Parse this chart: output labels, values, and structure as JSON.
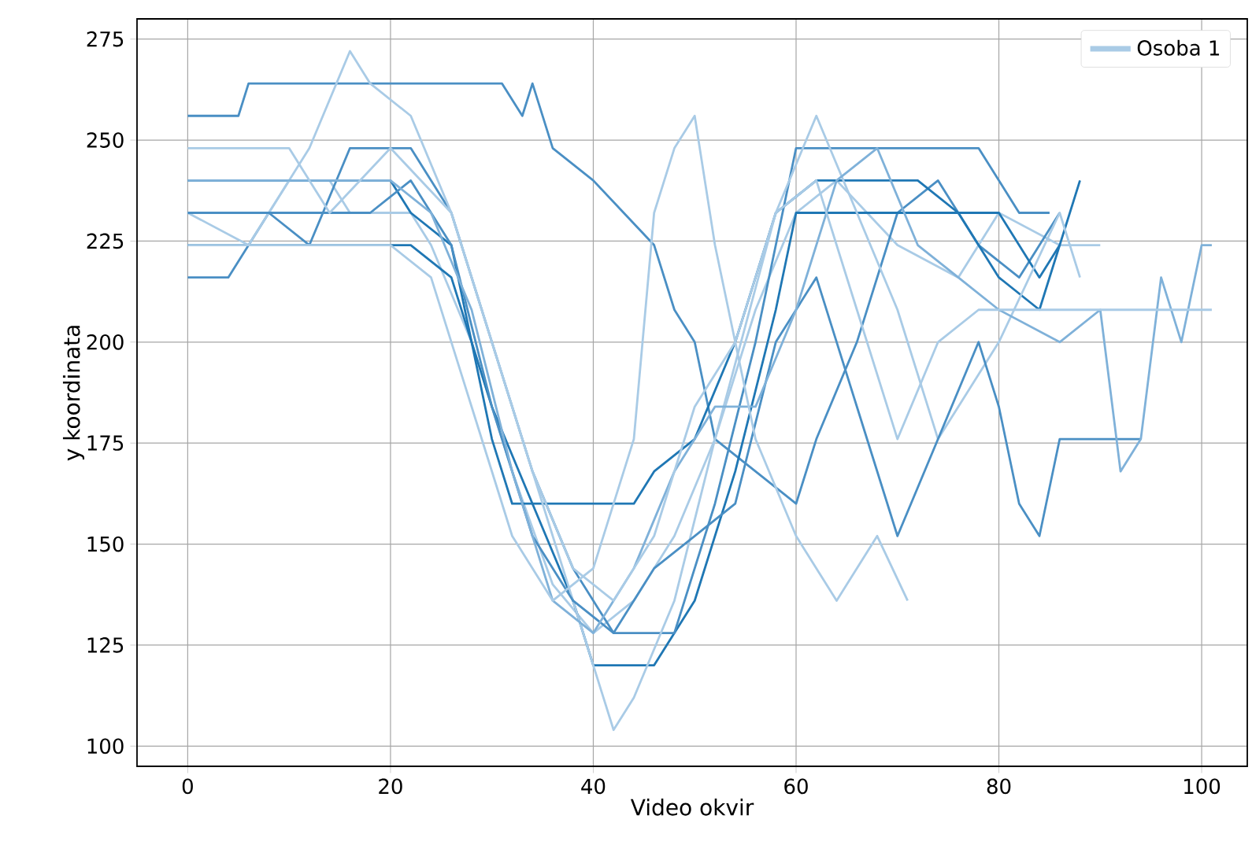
{
  "chart_data": {
    "type": "line",
    "xlabel": "Video okvir",
    "ylabel": "y koordinata",
    "xlim": [
      -5,
      104.5
    ],
    "ylim": [
      95,
      280
    ],
    "xticks": [
      0,
      20,
      40,
      60,
      80,
      100
    ],
    "yticks": [
      100,
      125,
      150,
      175,
      200,
      225,
      250,
      275
    ],
    "grid": true,
    "legend": "top right",
    "series": [
      {
        "name": "Osoba 1",
        "color": "#a9cbe6",
        "x": [
          0,
          8,
          10,
          14,
          16,
          22,
          24,
          28,
          32,
          36,
          40,
          44,
          48,
          52,
          56,
          60,
          64,
          70,
          76,
          80,
          86,
          90
        ],
        "values": [
          232,
          232,
          240,
          240,
          232,
          232,
          224,
          200,
          168,
          140,
          128,
          136,
          152,
          176,
          208,
          232,
          240,
          224,
          216,
          232,
          224,
          224
        ]
      },
      {
        "color": "#4a8fc4",
        "x": [
          0,
          5,
          6,
          31,
          33,
          34,
          36,
          40,
          43,
          46,
          48,
          50,
          52,
          56,
          60,
          62,
          66,
          70,
          74,
          78,
          82,
          86
        ],
        "values": [
          256,
          256,
          264,
          264,
          256,
          264,
          248,
          240,
          232,
          224,
          208,
          200,
          176,
          168,
          160,
          176,
          200,
          232,
          240,
          224,
          216,
          232
        ]
      },
      {
        "color": "#1f77b4",
        "x": [
          0,
          20,
          22,
          26,
          30,
          32,
          44,
          46,
          50,
          54,
          58,
          62,
          72,
          76,
          80,
          84,
          88
        ],
        "values": [
          240,
          240,
          232,
          224,
          176,
          160,
          160,
          168,
          176,
          200,
          232,
          240,
          240,
          232,
          216,
          208,
          240
        ]
      },
      {
        "color": "#1f77b4",
        "x": [
          0,
          22,
          26,
          30,
          34,
          38,
          40,
          46,
          50,
          54,
          58,
          60,
          80,
          84,
          86
        ],
        "values": [
          224,
          224,
          216,
          184,
          160,
          136,
          120,
          120,
          136,
          168,
          208,
          232,
          232,
          216,
          224
        ]
      },
      {
        "color": "#4a8fc4",
        "x": [
          0,
          4,
          8,
          12,
          16,
          22,
          26,
          30,
          34,
          38,
          42,
          48,
          52,
          56,
          60,
          78,
          82,
          85
        ],
        "values": [
          216,
          216,
          232,
          224,
          248,
          248,
          232,
          200,
          168,
          144,
          128,
          128,
          160,
          200,
          248,
          248,
          232,
          232
        ]
      },
      {
        "color": "#a9cbe6",
        "x": [
          0,
          6,
          12,
          16,
          18,
          22,
          26,
          32,
          36,
          40,
          42,
          44,
          48,
          52,
          58,
          62,
          66,
          70,
          74,
          80,
          86,
          88
        ],
        "values": [
          232,
          224,
          248,
          272,
          264,
          256,
          232,
          184,
          152,
          120,
          104,
          112,
          136,
          176,
          232,
          256,
          232,
          208,
          176,
          200,
          232,
          216
        ]
      },
      {
        "color": "#4a8fc4",
        "x": [
          0,
          18,
          22,
          26,
          30,
          34,
          38,
          42,
          46,
          50,
          54,
          58,
          62,
          66,
          70,
          74,
          78,
          80,
          82,
          84,
          86,
          94
        ],
        "values": [
          232,
          232,
          240,
          224,
          184,
          152,
          136,
          128,
          144,
          152,
          160,
          200,
          216,
          184,
          152,
          176,
          200,
          184,
          160,
          152,
          176,
          176
        ]
      },
      {
        "color": "#7fb1d9",
        "x": [
          0,
          20,
          24,
          28,
          32,
          36,
          40,
          44,
          48,
          52,
          56,
          60,
          64,
          68,
          72,
          76,
          80,
          86,
          90,
          92,
          94,
          96,
          98,
          100,
          101
        ],
        "values": [
          240,
          240,
          232,
          208,
          168,
          136,
          128,
          144,
          168,
          184,
          184,
          208,
          240,
          248,
          224,
          216,
          208,
          200,
          208,
          168,
          176,
          216,
          200,
          224,
          224
        ]
      },
      {
        "color": "#a9cbe6",
        "x": [
          0,
          20,
          24,
          28,
          32,
          36,
          40,
          44,
          46,
          48,
          50,
          52,
          54,
          56,
          60,
          64,
          68,
          71
        ],
        "values": [
          224,
          224,
          216,
          184,
          152,
          136,
          144,
          176,
          232,
          248,
          256,
          224,
          200,
          176,
          152,
          136,
          152,
          136
        ]
      },
      {
        "color": "#a9cbe6",
        "x": [
          0,
          10,
          14,
          20,
          26,
          30,
          34,
          38,
          42,
          46,
          50,
          54,
          58,
          62,
          66,
          70,
          74,
          78,
          86,
          101
        ],
        "values": [
          248,
          248,
          232,
          248,
          232,
          200,
          168,
          144,
          136,
          152,
          184,
          200,
          232,
          240,
          208,
          176,
          200,
          208,
          208,
          208
        ]
      }
    ]
  }
}
